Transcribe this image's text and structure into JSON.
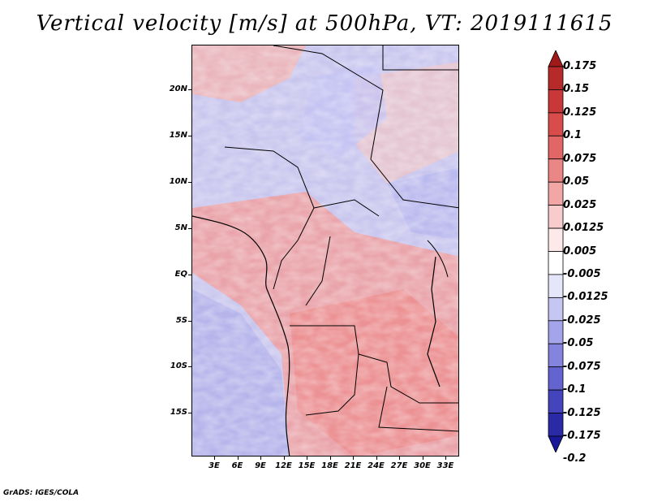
{
  "title": "Vertical velocity [m/s] at 500hPa, VT: 2019111615",
  "credit": "GrADS: IGES/COLA",
  "lat_labels": [
    "20N",
    "15N",
    "10N",
    "5N",
    "EQ",
    "5S",
    "10S",
    "15S"
  ],
  "lon_labels": [
    "3E",
    "6E",
    "9E",
    "12E",
    "15E",
    "18E",
    "21E",
    "24E",
    "27E",
    "30E",
    "33E"
  ],
  "colorbar": {
    "labels": [
      "0.175",
      "0.15",
      "0.125",
      "0.1",
      "0.075",
      "0.05",
      "0.025",
      "0.0125",
      "0.005",
      "-0.005",
      "-0.0125",
      "-0.025",
      "-0.05",
      "-0.075",
      "-0.1",
      "-0.125",
      "-0.175",
      "-0.2"
    ],
    "colors": [
      "#a11a1a",
      "#b72a2a",
      "#c93838",
      "#d84c4c",
      "#e26666",
      "#eb8686",
      "#f2a6a6",
      "#f8cccc",
      "#fde9e9",
      "#ffffff",
      "#e6e6fa",
      "#c6c6f2",
      "#a4a4ea",
      "#8484de",
      "#6464d0",
      "#4444bc",
      "#2a2aa6",
      "#181898"
    ]
  }
}
